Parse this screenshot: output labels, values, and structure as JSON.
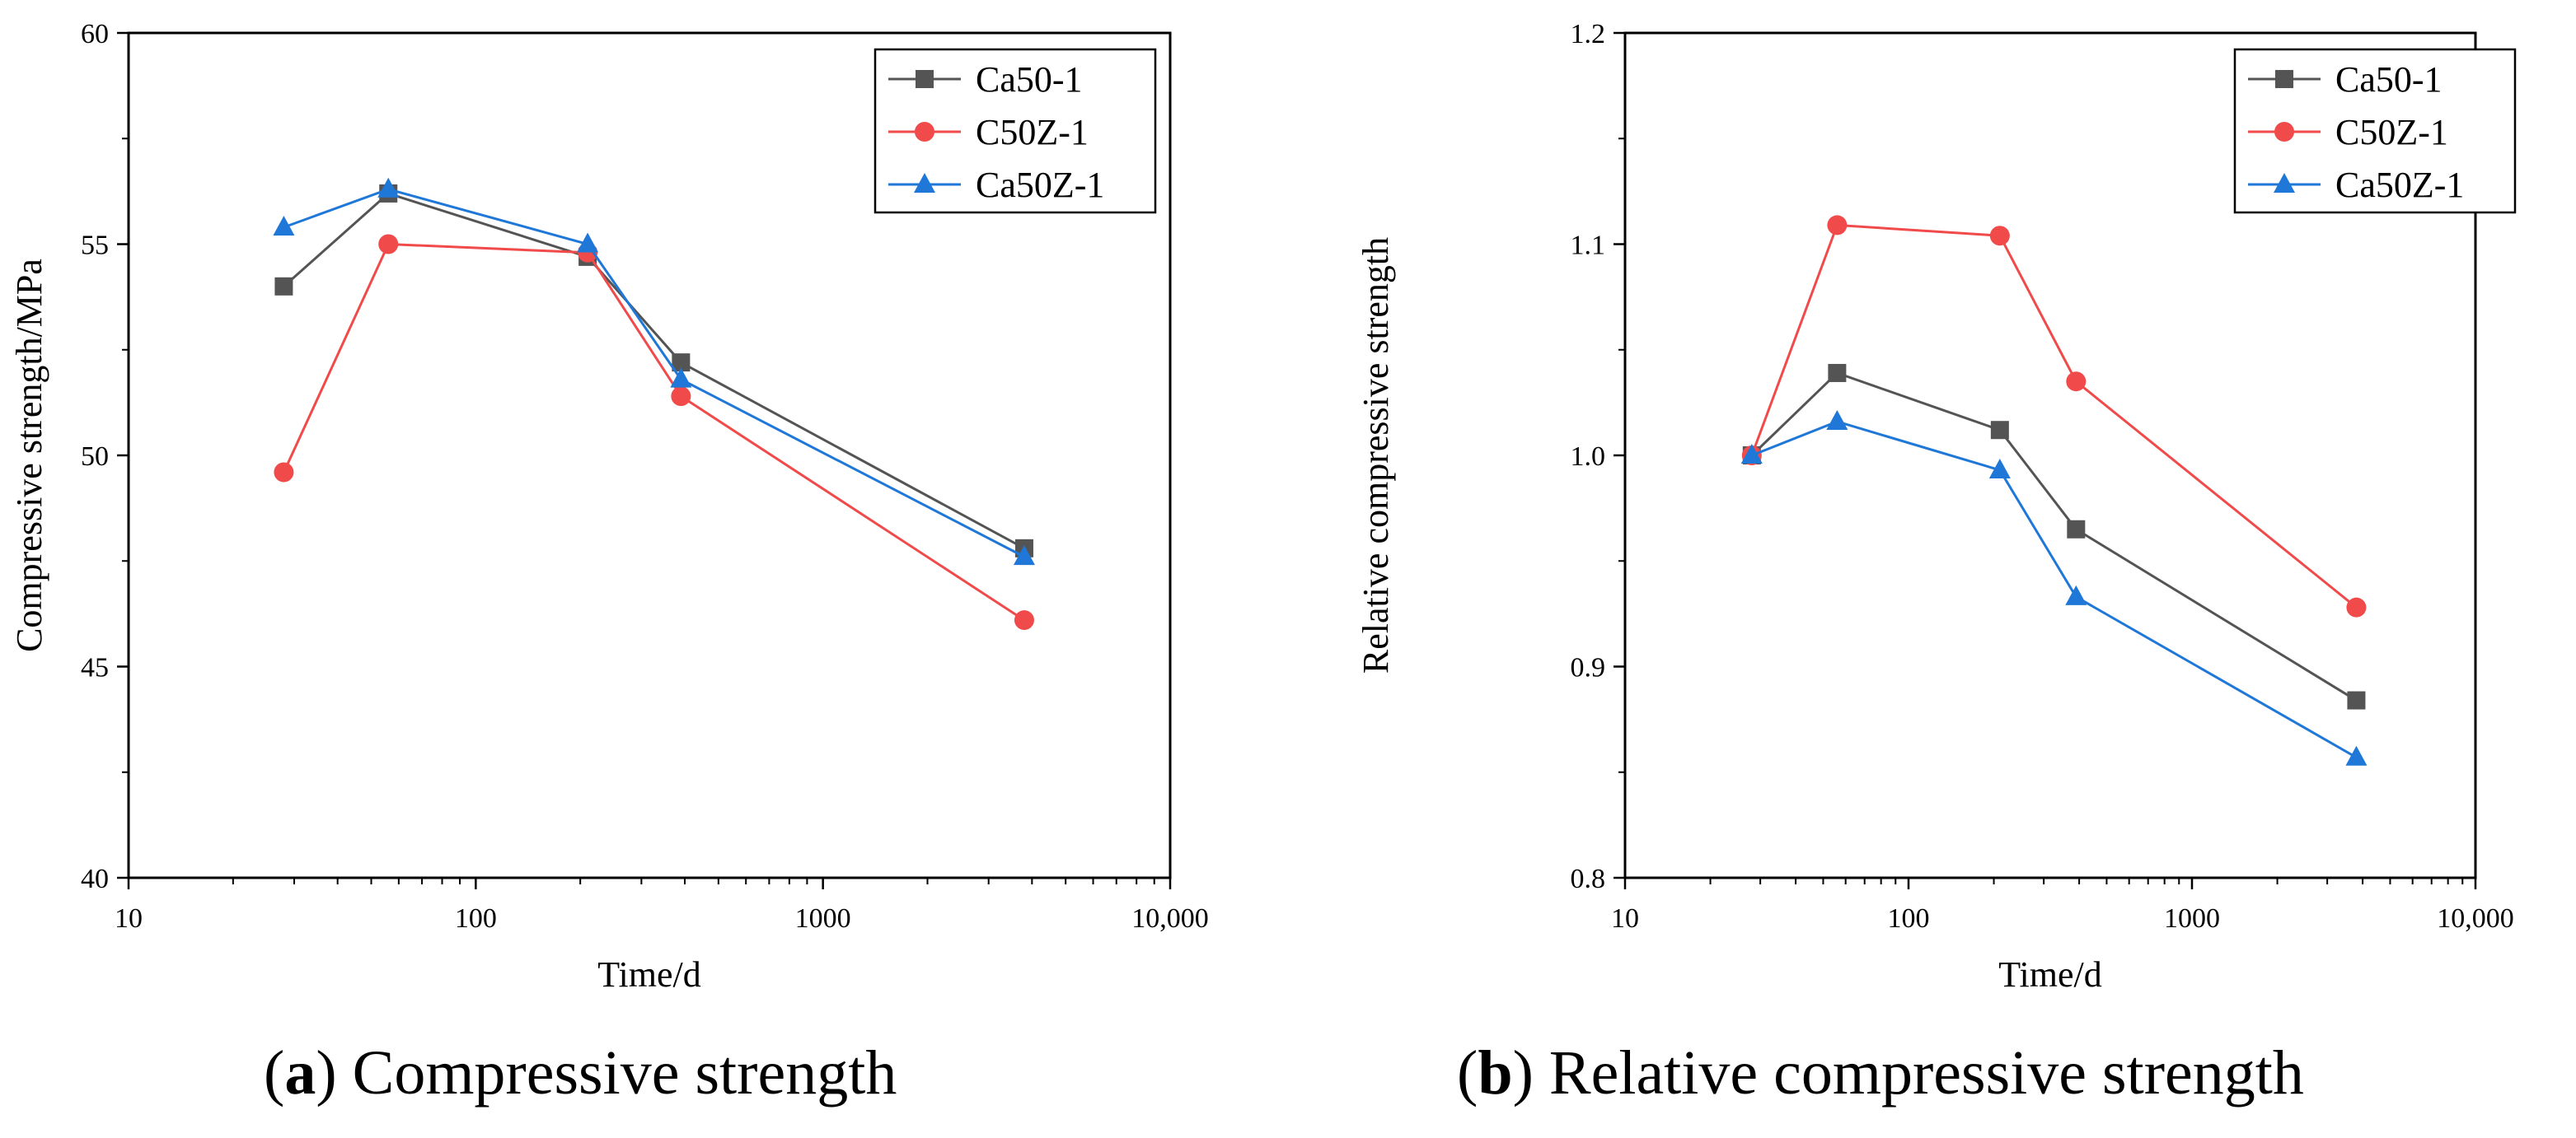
{
  "chart_data": [
    {
      "type": "line",
      "panel": "a",
      "caption_letter": "a",
      "caption_open": "(",
      "caption_close": ")",
      "caption_text": " Compressive strength",
      "title": "",
      "xlabel": "Time/d",
      "ylabel": "Compressive strength/MPa",
      "xscale": "log",
      "xlim": [
        10,
        10000
      ],
      "ylim": [
        40,
        60
      ],
      "xticks": [
        10,
        100,
        1000,
        10000
      ],
      "xtick_labels": [
        "10",
        "100",
        "1000",
        "10,000"
      ],
      "yticks": [
        40,
        45,
        50,
        55,
        60
      ],
      "ytick_labels": [
        "40",
        "45",
        "50",
        "55",
        "60"
      ],
      "legend_position": "top-right",
      "x": [
        28,
        56,
        210,
        390,
        3800
      ],
      "series": [
        {
          "name": "Ca50-1",
          "marker": "square",
          "color": "#545454",
          "values": [
            54.0,
            56.2,
            54.7,
            52.2,
            47.8
          ]
        },
        {
          "name": "C50Z-1",
          "marker": "circle",
          "color": "#f04a4a",
          "values": [
            49.6,
            55.0,
            54.8,
            51.4,
            46.1
          ]
        },
        {
          "name": "Ca50Z-1",
          "marker": "triangle",
          "color": "#1f78d8",
          "values": [
            55.4,
            56.3,
            55.0,
            51.8,
            47.6
          ]
        }
      ]
    },
    {
      "type": "line",
      "panel": "b",
      "caption_letter": "b",
      "caption_open": "(",
      "caption_close": ")",
      "caption_text": " Relative compressive strength",
      "title": "",
      "xlabel": "Time/d",
      "ylabel": "Relative compressive strength",
      "xscale": "log",
      "xlim": [
        10,
        10000
      ],
      "ylim": [
        0.8,
        1.2
      ],
      "xticks": [
        10,
        100,
        1000,
        10000
      ],
      "xtick_labels": [
        "10",
        "100",
        "1000",
        "10,000"
      ],
      "yticks": [
        0.8,
        0.9,
        1.0,
        1.1,
        1.2
      ],
      "ytick_labels": [
        "0.8",
        "0.9",
        "1.0",
        "1.1",
        "1.2"
      ],
      "legend_position": "top-right",
      "x": [
        28,
        56,
        210,
        390,
        3800
      ],
      "series": [
        {
          "name": "Ca50-1",
          "marker": "square",
          "color": "#545454",
          "values": [
            1.0,
            1.039,
            1.012,
            0.965,
            0.884
          ]
        },
        {
          "name": "C50Z-1",
          "marker": "circle",
          "color": "#f04a4a",
          "values": [
            1.0,
            1.109,
            1.104,
            1.035,
            0.928
          ]
        },
        {
          "name": "Ca50Z-1",
          "marker": "triangle",
          "color": "#1f78d8",
          "values": [
            1.0,
            1.016,
            0.993,
            0.933,
            0.857
          ]
        }
      ]
    }
  ]
}
